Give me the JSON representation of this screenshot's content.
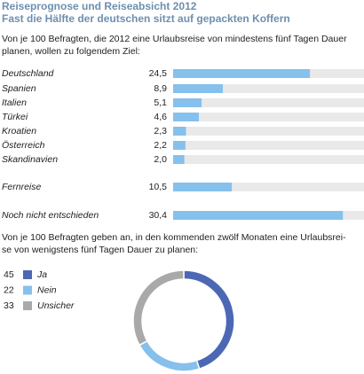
{
  "title": "Reiseprognose und Reiseabsicht 2012",
  "subtitle": "Fast die Hälfte der deutschen sitzt auf gepackten Koffern",
  "intro": [
    "Von je 100 Befragten, die 2012 eine Urlaubsreise von mindestens fünf Tagen Dauer",
    "planen, wollen zu folgendem Ziel:"
  ],
  "question": [
    "Von je 100 Befragten geben an, in den kommenden zwölf Monaten eine Urlaubsrei-",
    "se von wenigstens fünf Tagen Dauer zu planen:"
  ],
  "chart_data": [
    {
      "type": "bar",
      "categories": [
        "Deutschland",
        "Spanien",
        "Italien",
        "Türkei",
        "Kroatien",
        "Österreich",
        "Skandinavien",
        "Fernreise",
        "Noch nicht entschieden"
      ],
      "values": [
        24.5,
        8.9,
        5.1,
        4.6,
        2.3,
        2.2,
        2.0,
        10.5,
        30.4
      ],
      "value_labels": [
        "24,5",
        "8,9",
        "5,1",
        "4,6",
        "2,3",
        "2,2",
        "2,0",
        "10,5",
        "30,4"
      ],
      "color": "#86c0ec"
    },
    {
      "type": "pie",
      "categories": [
        "Ja",
        "Nein",
        "Unsicher"
      ],
      "values": [
        45,
        22,
        33
      ],
      "colors": [
        "#4c68b4",
        "#86c0ec",
        "#a9a9a9"
      ]
    }
  ]
}
